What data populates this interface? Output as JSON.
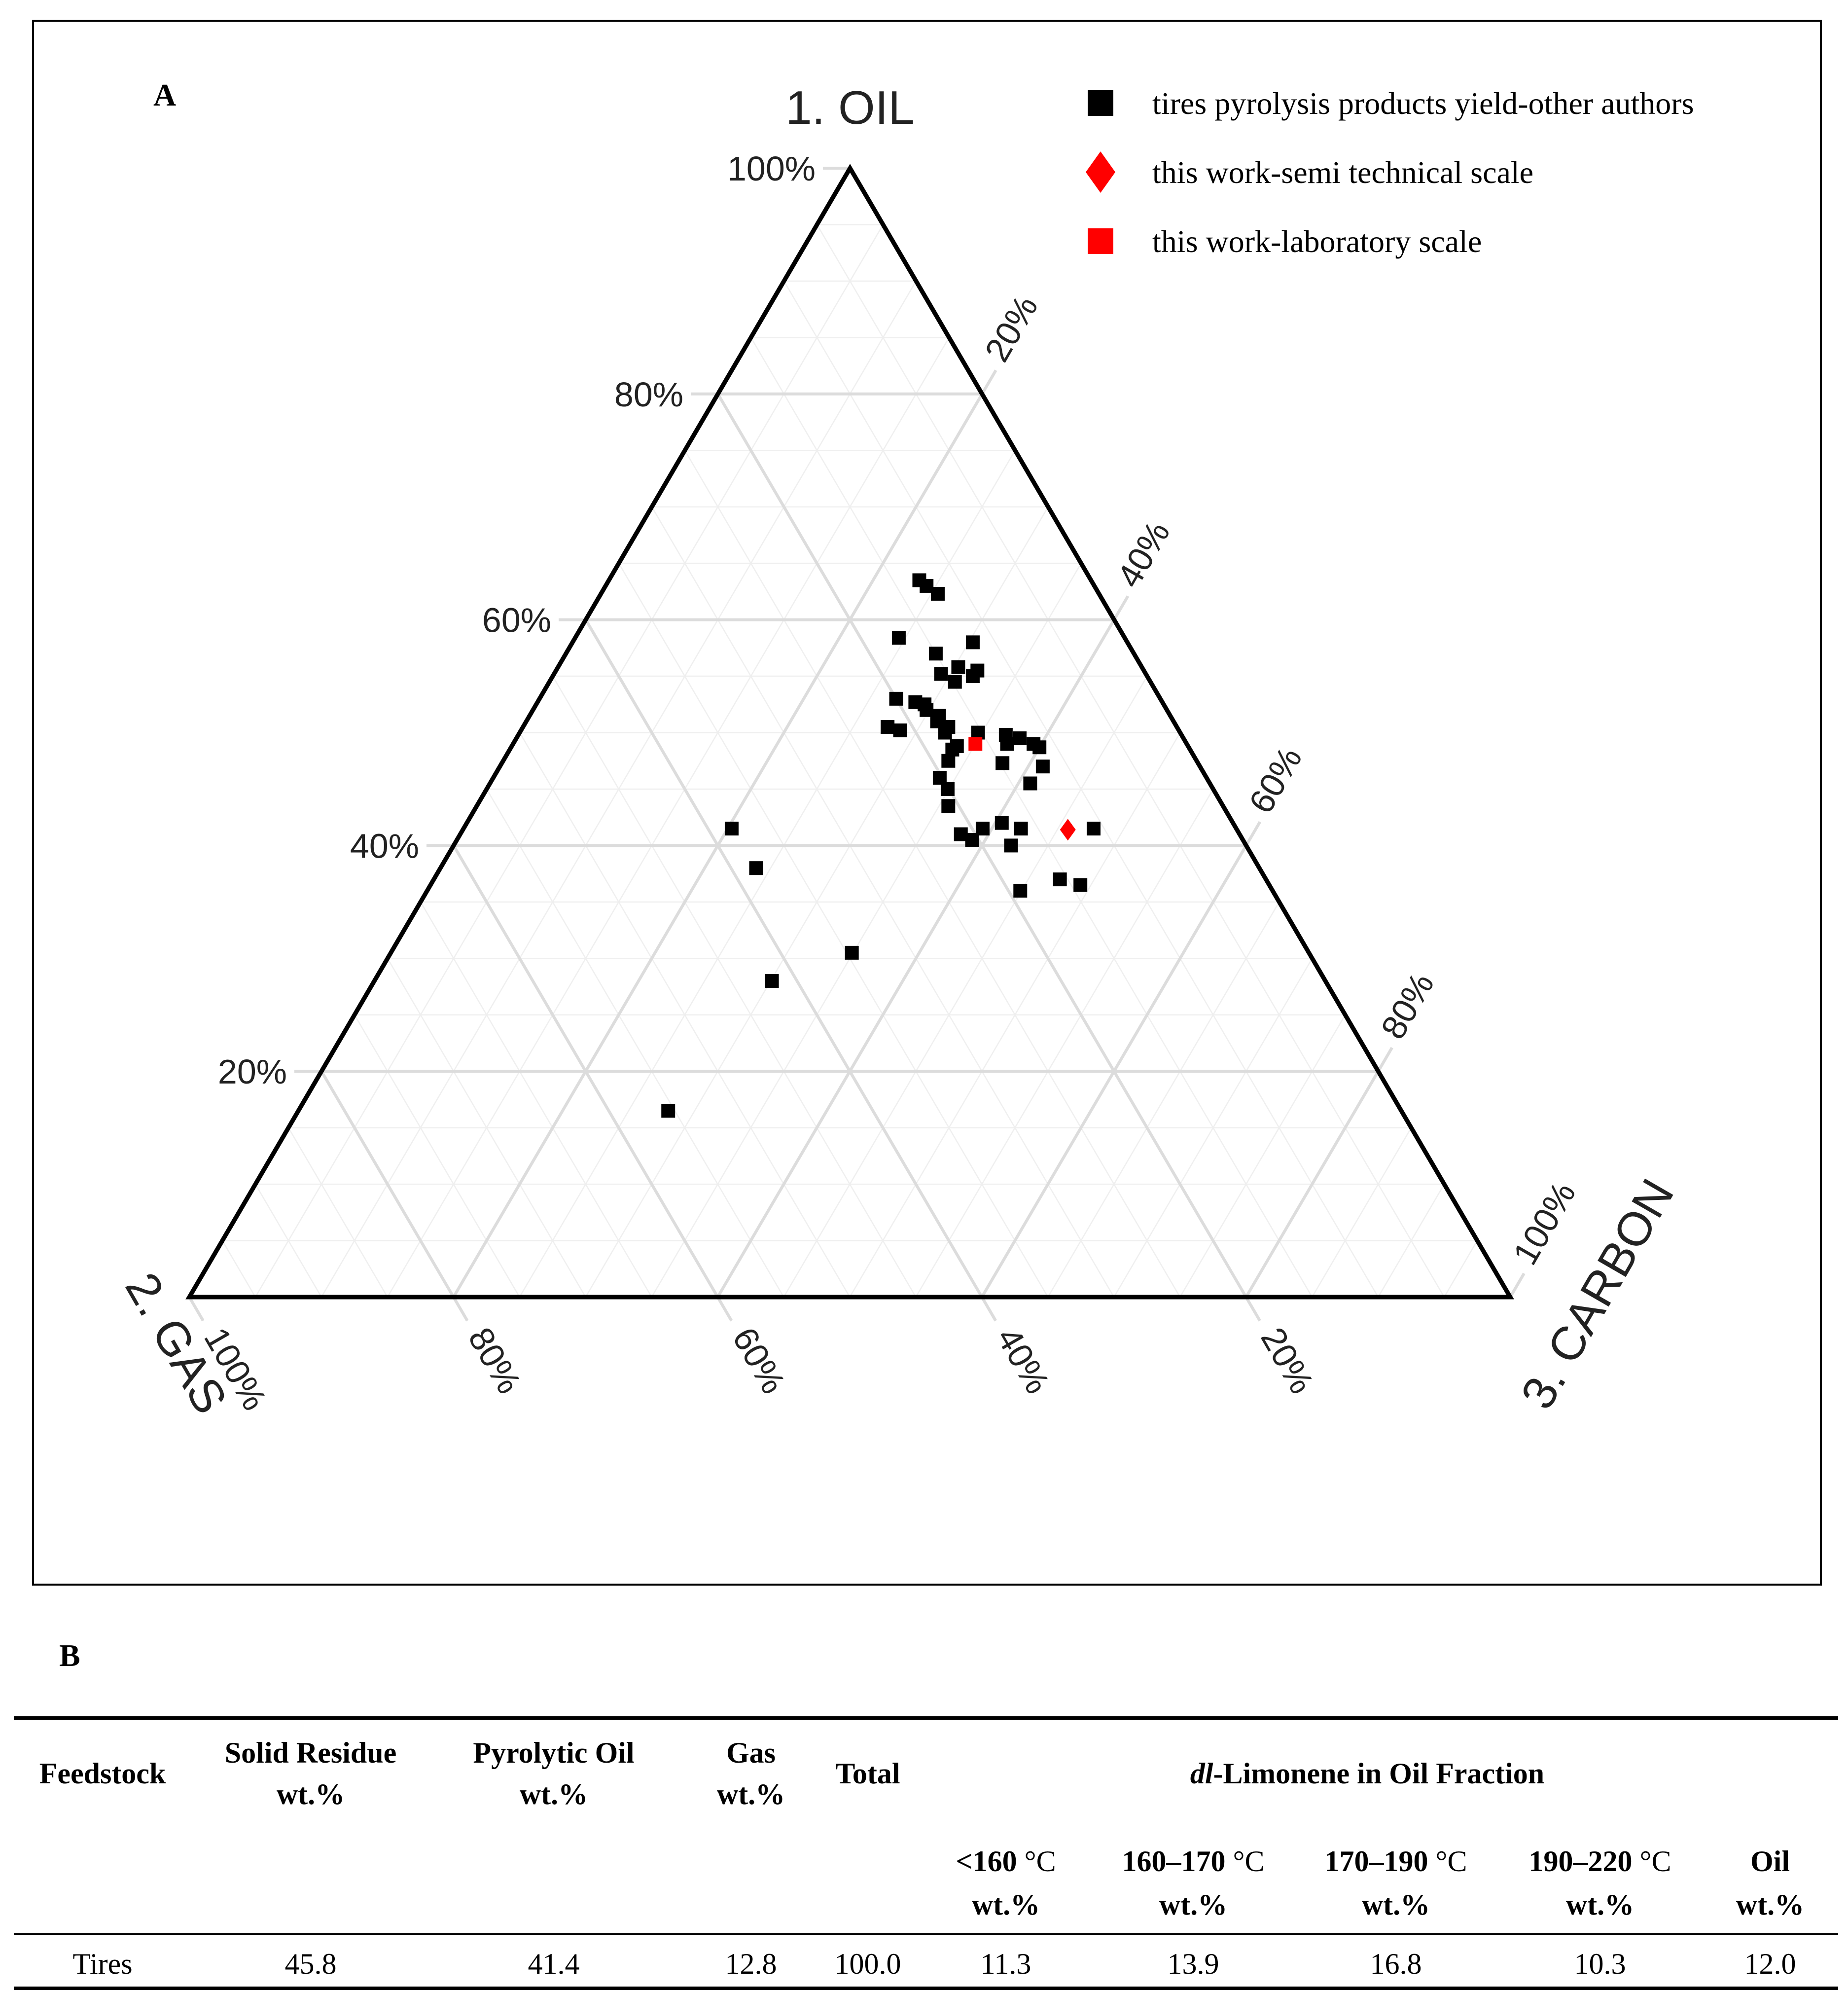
{
  "panel_a": {
    "letter": "A"
  },
  "panel_b": {
    "letter": "B"
  },
  "chart_data": {
    "type": "scatter",
    "subtype": "ternary",
    "axes": {
      "oil": {
        "label": "1. OIL",
        "ticks": [
          "100%",
          "80%",
          "60%",
          "40%",
          "20%"
        ]
      },
      "gas": {
        "label": "2. GAS",
        "ticks": [
          "100%",
          "80%",
          "60%",
          "40%",
          "20%"
        ]
      },
      "carbon": {
        "label": "3. CARBON",
        "ticks": [
          "20%",
          "40%",
          "60%",
          "80%",
          "100%"
        ]
      }
    },
    "legend": [
      {
        "label": "tires pyrolysis products yield-other authors",
        "marker": "square",
        "color": "#000000"
      },
      {
        "label": "this work-semi technical scale",
        "marker": "diamond",
        "color": "#ff0000"
      },
      {
        "label": "this work-laboratory scale",
        "marker": "square",
        "color": "#ff0000"
      }
    ],
    "series": [
      {
        "name": "tires pyrolysis products yield-other authors",
        "color": "#000000",
        "points": [
          {
            "oil": 63.5,
            "gas": 13.0,
            "carbon": 23.5
          },
          {
            "oil": 63.0,
            "gas": 12.7,
            "carbon": 24.3
          },
          {
            "oil": 62.3,
            "gas": 12.2,
            "carbon": 25.5
          },
          {
            "oil": 58.4,
            "gas": 17.1,
            "carbon": 24.5
          },
          {
            "oil": 58.0,
            "gas": 11.7,
            "carbon": 30.3
          },
          {
            "oil": 57.0,
            "gas": 15.0,
            "carbon": 28.0
          },
          {
            "oil": 55.8,
            "gas": 13.9,
            "carbon": 30.3
          },
          {
            "oil": 55.5,
            "gas": 12.6,
            "carbon": 31.9
          },
          {
            "oil": 55.2,
            "gas": 15.5,
            "carbon": 29.3
          },
          {
            "oil": 55.0,
            "gas": 13.2,
            "carbon": 31.8
          },
          {
            "oil": 54.5,
            "gas": 14.8,
            "carbon": 30.7
          },
          {
            "oil": 53.0,
            "gas": 20.0,
            "carbon": 27.0
          },
          {
            "oil": 52.7,
            "gas": 18.7,
            "carbon": 28.6
          },
          {
            "oil": 52.5,
            "gas": 18.1,
            "carbon": 29.4
          },
          {
            "oil": 52.0,
            "gas": 18.2,
            "carbon": 29.8
          },
          {
            "oil": 51.5,
            "gas": 17.5,
            "carbon": 31.0
          },
          {
            "oil": 51.0,
            "gas": 17.9,
            "carbon": 31.1
          },
          {
            "oil": 50.5,
            "gas": 21.9,
            "carbon": 27.6
          },
          {
            "oil": 50.5,
            "gas": 17.3,
            "carbon": 32.2
          },
          {
            "oil": 50.2,
            "gas": 21.1,
            "carbon": 28.7
          },
          {
            "oil": 50.0,
            "gas": 17.8,
            "carbon": 32.2
          },
          {
            "oil": 50.0,
            "gas": 15.3,
            "carbon": 34.7
          },
          {
            "oil": 49.8,
            "gas": 13.3,
            "carbon": 36.9
          },
          {
            "oil": 49.5,
            "gas": 12.4,
            "carbon": 38.1
          },
          {
            "oil": 49.0,
            "gas": 13.6,
            "carbon": 37.4
          },
          {
            "oil": 49.0,
            "gas": 11.6,
            "carbon": 39.4
          },
          {
            "oil": 48.8,
            "gas": 17.5,
            "carbon": 33.7
          },
          {
            "oil": 48.7,
            "gas": 11.3,
            "carbon": 40.0
          },
          {
            "oil": 48.5,
            "gas": 18.0,
            "carbon": 33.5
          },
          {
            "oil": 47.5,
            "gas": 18.8,
            "carbon": 33.7
          },
          {
            "oil": 47.3,
            "gas": 14.8,
            "carbon": 37.9
          },
          {
            "oil": 47.0,
            "gas": 11.9,
            "carbon": 41.1
          },
          {
            "oil": 46.0,
            "gas": 20.2,
            "carbon": 33.8
          },
          {
            "oil": 45.5,
            "gas": 13.6,
            "carbon": 40.9
          },
          {
            "oil": 45.0,
            "gas": 20.1,
            "carbon": 34.9
          },
          {
            "oil": 43.5,
            "gas": 20.8,
            "carbon": 35.7
          },
          {
            "oil": 42.0,
            "gas": 17.5,
            "carbon": 40.5
          },
          {
            "oil": 41.5,
            "gas": 19.2,
            "carbon": 39.3
          },
          {
            "oil": 41.5,
            "gas": 16.3,
            "carbon": 42.2
          },
          {
            "oil": 41.5,
            "gas": 10.8,
            "carbon": 47.7
          },
          {
            "oil": 41.5,
            "gas": 38.2,
            "carbon": 20.3
          },
          {
            "oil": 41.0,
            "gas": 21.1,
            "carbon": 37.9
          },
          {
            "oil": 40.5,
            "gas": 20.5,
            "carbon": 39.0
          },
          {
            "oil": 40.0,
            "gas": 17.8,
            "carbon": 42.2
          },
          {
            "oil": 38.0,
            "gas": 38.1,
            "carbon": 23.9
          },
          {
            "oil": 37.0,
            "gas": 15.6,
            "carbon": 47.4
          },
          {
            "oil": 36.5,
            "gas": 14.3,
            "carbon": 49.2
          },
          {
            "oil": 36.0,
            "gas": 19.1,
            "carbon": 44.9
          },
          {
            "oil": 30.5,
            "gas": 34.6,
            "carbon": 34.9
          },
          {
            "oil": 28.0,
            "gas": 41.9,
            "carbon": 30.1
          },
          {
            "oil": 16.5,
            "gas": 55.5,
            "carbon": 28.0
          }
        ]
      },
      {
        "name": "this work-semi technical scale",
        "color": "#ff0000",
        "points": [
          {
            "oil": 41.4,
            "gas": 12.8,
            "carbon": 45.8
          }
        ]
      },
      {
        "name": "this work-laboratory scale",
        "color": "#ff0000",
        "points": [
          {
            "oil": 49.0,
            "gas": 16.0,
            "carbon": 35.0
          }
        ]
      }
    ]
  },
  "table": {
    "headers": {
      "feedstock": "Feedstock",
      "solid_residue": [
        "Solid Residue",
        "wt.%"
      ],
      "pyrolytic_oil": [
        "Pyrolytic Oil",
        "wt.%"
      ],
      "gas": [
        "Gas",
        "wt.%"
      ],
      "total": "Total",
      "group": {
        "italic": "dl",
        "rest": "-Limonene in Oil Fraction"
      },
      "sub": [
        {
          "temp": "<160",
          "unit": "°C",
          "line2": "wt.%"
        },
        {
          "temp": "160–170",
          "unit": "°C",
          "line2": "wt.%"
        },
        {
          "temp": "170–190",
          "unit": "°C",
          "line2": "wt.%"
        },
        {
          "temp": "190–220",
          "unit": "°C",
          "line2": "wt.%"
        },
        {
          "temp": "Oil",
          "unit": "",
          "line2": "wt.%"
        }
      ]
    },
    "rows": [
      [
        "Tires",
        "45.8",
        "41.4",
        "12.8",
        "100.0",
        "11.3",
        "13.9",
        "16.8",
        "10.3",
        "12.0"
      ]
    ]
  }
}
